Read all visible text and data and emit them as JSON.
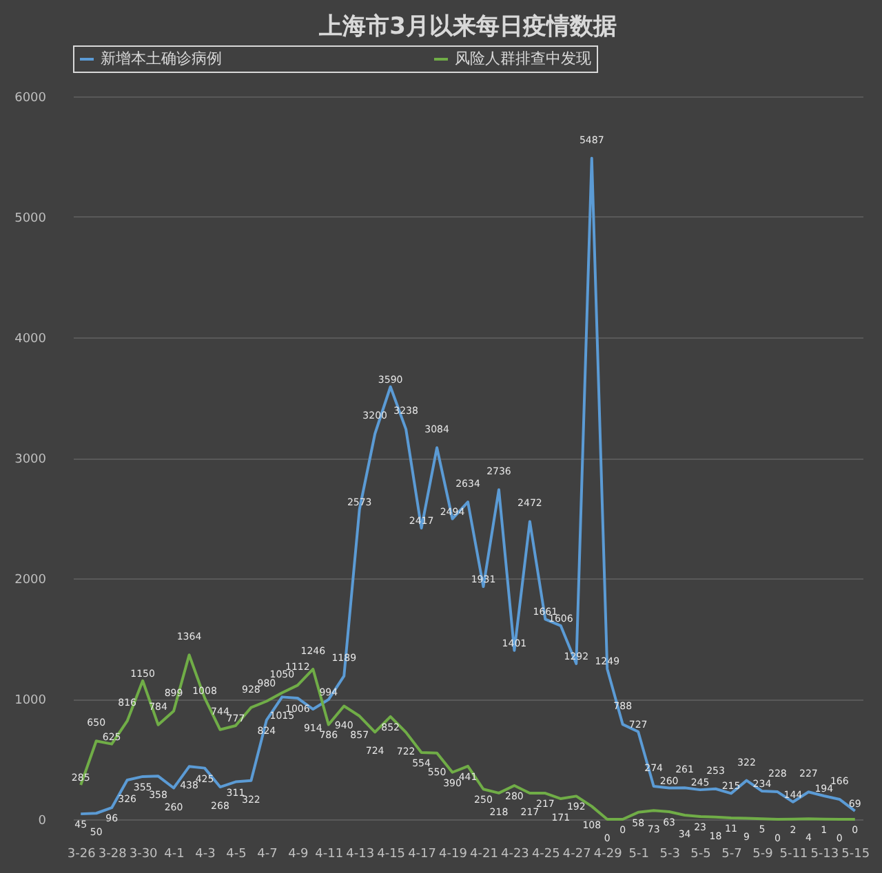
{
  "chart_data": {
    "type": "line",
    "title": "上海市3月以来每日疫情数据",
    "categories": [
      "3-26",
      null,
      "3-28",
      null,
      "3-30",
      null,
      "4-1",
      null,
      "4-3",
      null,
      "4-5",
      null,
      "4-7",
      null,
      "4-9",
      null,
      "4-11",
      null,
      "4-13",
      null,
      "4-15",
      null,
      "4-17",
      null,
      "4-19",
      null,
      "4-21",
      null,
      "4-23",
      null,
      "4-25",
      null,
      "4-27",
      null,
      "4-29",
      null,
      "5-1",
      null,
      "5-3",
      null,
      "5-5",
      null,
      "5-7",
      null,
      "5-9",
      null,
      "5-11",
      null,
      "5-13",
      null,
      "5-15"
    ],
    "series": [
      {
        "name": "新增本土确诊病例",
        "color": "#5b9bd5",
        "values": [
          45,
          50,
          96,
          326,
          355,
          358,
          260,
          438,
          425,
          268,
          311,
          322,
          824,
          1015,
          1006,
          914,
          994,
          1189,
          2573,
          3200,
          3590,
          3238,
          2417,
          3084,
          2494,
          2634,
          1931,
          2736,
          1401,
          2472,
          1661,
          1606,
          1292,
          5487,
          1249,
          788,
          727,
          274,
          260,
          261,
          245,
          253,
          215,
          322,
          234,
          228,
          144,
          227,
          194,
          166,
          69
        ]
      },
      {
        "name": "风险人群排查中发现",
        "color": "#70ad47",
        "values": [
          285,
          650,
          625,
          816,
          1150,
          784,
          899,
          1364,
          1008,
          744,
          777,
          928,
          980,
          1050,
          1112,
          1246,
          786,
          940,
          857,
          724,
          852,
          722,
          554,
          550,
          390,
          441,
          250,
          218,
          280,
          217,
          217,
          171,
          192,
          108,
          0,
          0,
          58,
          73,
          63,
          34,
          23,
          18,
          11,
          9,
          5,
          0,
          2,
          4,
          1,
          0,
          0
        ]
      }
    ],
    "ylim": [
      0,
      6000
    ],
    "yticks": [
      0,
      {
        "value": 1000,
        "label": "1000"
      },
      {
        "value": 2000,
        "label": "2000"
      },
      {
        "value": 3000,
        "label": "3000"
      },
      {
        "value": 4000,
        "label": "4000"
      },
      {
        "value": 5000,
        "label": "5000"
      },
      {
        "value": 6000,
        "label": "6000"
      }
    ],
    "grid": "y",
    "legend": "top",
    "data_labels": true,
    "marker": "none",
    "line_style": "solid"
  }
}
